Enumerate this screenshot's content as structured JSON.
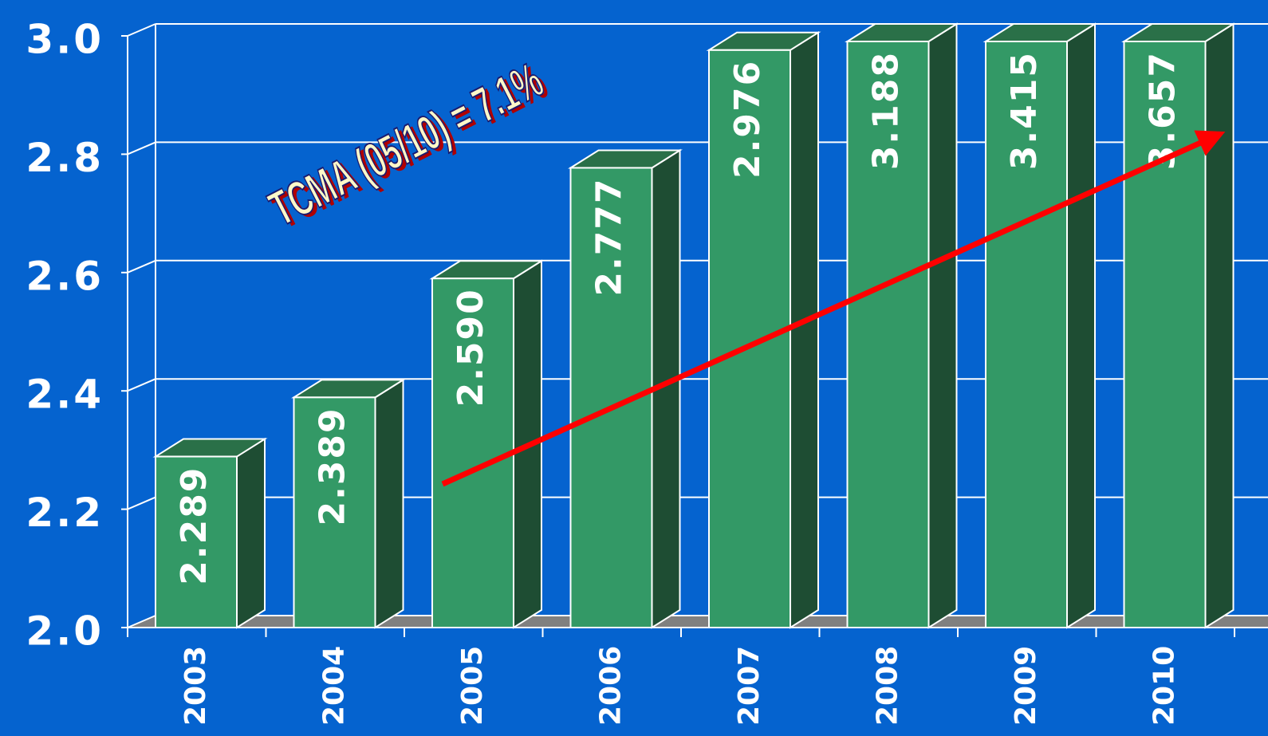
{
  "chart_data": {
    "type": "bar",
    "categories": [
      "2003",
      "2004",
      "2005",
      "2006",
      "2007",
      "2008",
      "2009",
      "2010"
    ],
    "values": [
      2.289,
      2.389,
      2.59,
      2.777,
      2.976,
      3.188,
      3.415,
      3.657
    ],
    "value_labels": [
      "2.289",
      "2.389",
      "2.590",
      "2.777",
      "2.976",
      "3.188",
      "3.415",
      "3.657"
    ],
    "color": "#339966",
    "ylim": [
      2.0,
      3.0
    ],
    "yticks": [
      {
        "value": 2.0,
        "label": "2.0"
      },
      2.2,
      2.4,
      2.6,
      2.8,
      {
        "value": 3.0,
        "label": "3.0"
      }
    ],
    "grid": true,
    "annotation": "TCMA (05/10) = 7.1%"
  }
}
